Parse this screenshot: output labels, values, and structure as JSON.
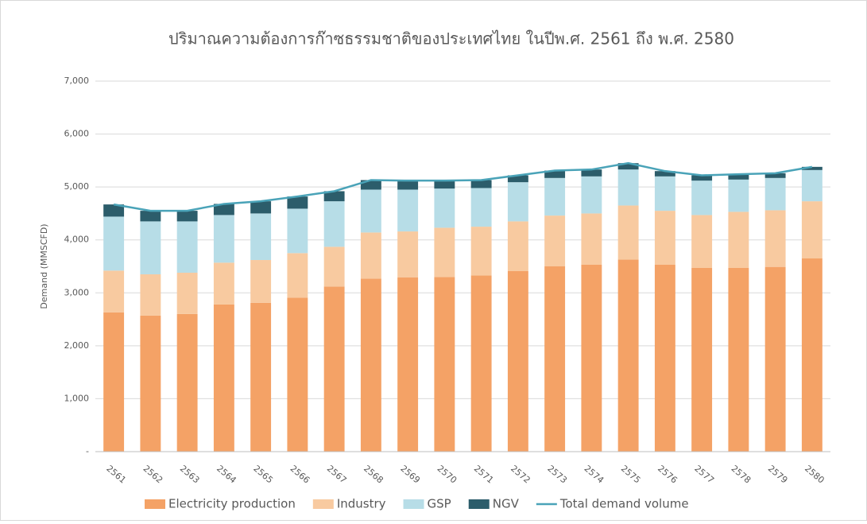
{
  "chart_data": {
    "type": "bar",
    "stacked": true,
    "title": "ปริมาณความต้องการก๊าซธรรมชาติของประเทศไทย ในปีพ.ศ. 2561 ถึง พ.ศ. 2580",
    "y_label": "Demand (MMSCFD)",
    "categories": [
      "2561",
      "2562",
      "2563",
      "2564",
      "2565",
      "2566",
      "2567",
      "2568",
      "2569",
      "2570",
      "2571",
      "2572",
      "2573",
      "2574",
      "2575",
      "2576",
      "2577",
      "2578",
      "2579",
      "2580"
    ],
    "series": [
      {
        "name": "Electricity production",
        "color": "#f4a266",
        "type": "bar",
        "values": [
          2630,
          2570,
          2600,
          2780,
          2810,
          2910,
          3120,
          3270,
          3290,
          3300,
          3330,
          3410,
          3500,
          3530,
          3630,
          3530,
          3470,
          3470,
          3490,
          3650
        ]
      },
      {
        "name": "Industry",
        "color": "#f8caa0",
        "type": "bar",
        "values": [
          790,
          780,
          780,
          790,
          810,
          840,
          750,
          870,
          870,
          930,
          920,
          940,
          960,
          970,
          1020,
          1020,
          1000,
          1060,
          1070,
          1080
        ]
      },
      {
        "name": "GSP",
        "color": "#b7dde7",
        "type": "bar",
        "values": [
          1020,
          1000,
          970,
          900,
          880,
          840,
          860,
          810,
          790,
          740,
          730,
          740,
          710,
          700,
          680,
          650,
          650,
          610,
          610,
          590
        ]
      },
      {
        "name": "NGV",
        "color": "#2c5d6b",
        "type": "bar",
        "values": [
          230,
          200,
          200,
          210,
          230,
          230,
          190,
          180,
          170,
          150,
          150,
          130,
          140,
          130,
          120,
          100,
          100,
          100,
          90,
          60
        ]
      },
      {
        "name": "Total demand volume",
        "color": "#4aa3b8",
        "type": "line",
        "values": [
          4670,
          4550,
          4550,
          4680,
          4730,
          4820,
          4920,
          5130,
          5120,
          5120,
          5130,
          5220,
          5310,
          5330,
          5450,
          5300,
          5220,
          5240,
          5260,
          5380
        ]
      }
    ],
    "ylim": [
      0,
      7000
    ],
    "yticks": [
      {
        "value": 0,
        "label": "-"
      },
      {
        "value": 1000,
        "label": "1,000"
      },
      {
        "value": 2000,
        "label": "2,000"
      },
      {
        "value": 3000,
        "label": "3,000"
      },
      {
        "value": 4000,
        "label": "4,000"
      },
      {
        "value": 5000,
        "label": "5,000"
      },
      {
        "value": 6000,
        "label": "6,000"
      },
      {
        "value": 7000,
        "label": "7,000"
      }
    ],
    "grid": true,
    "legend": "bottom"
  }
}
